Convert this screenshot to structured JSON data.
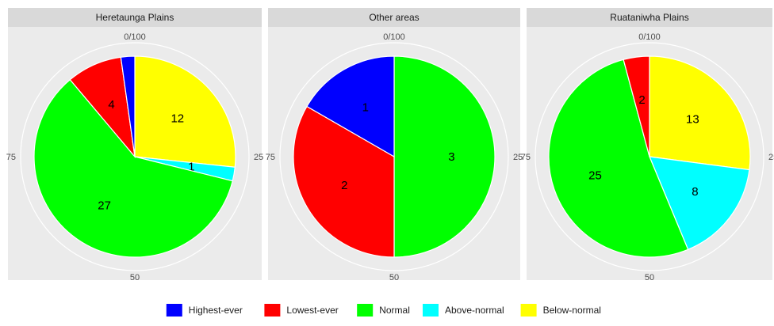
{
  "chart_data": {
    "type": "pie",
    "polar_axis_ticks": [
      "0/100",
      "25",
      "50",
      "75"
    ],
    "facets": [
      {
        "title": "Heretaunga Plains",
        "slices": [
          {
            "category": "Below-normal",
            "value": 12,
            "show_label": true
          },
          {
            "category": "Above-normal",
            "value": 1,
            "show_label": true
          },
          {
            "category": "Normal",
            "value": 27,
            "show_label": true
          },
          {
            "category": "Lowest-ever",
            "value": 4,
            "show_label": true
          },
          {
            "category": "Highest-ever",
            "value": 1,
            "show_label": false
          }
        ]
      },
      {
        "title": "Other areas",
        "slices": [
          {
            "category": "Normal",
            "value": 3,
            "show_label": true
          },
          {
            "category": "Lowest-ever",
            "value": 2,
            "show_label": true
          },
          {
            "category": "Highest-ever",
            "value": 1,
            "show_label": true
          }
        ]
      },
      {
        "title": "Ruataniwha Plains",
        "slices": [
          {
            "category": "Below-normal",
            "value": 13,
            "show_label": true
          },
          {
            "category": "Above-normal",
            "value": 8,
            "show_label": true
          },
          {
            "category": "Normal",
            "value": 25,
            "show_label": true
          },
          {
            "category": "Lowest-ever",
            "value": 2,
            "show_label": true
          }
        ]
      }
    ],
    "legend": {
      "position": "bottom",
      "entries": [
        {
          "label": "Highest-ever",
          "color": "#0000ff"
        },
        {
          "label": "Lowest-ever",
          "color": "#ff0000"
        },
        {
          "label": "Normal",
          "color": "#00ff00"
        },
        {
          "label": "Above-normal",
          "color": "#00ffff"
        },
        {
          "label": "Below-normal",
          "color": "#ffff00"
        }
      ]
    },
    "panel_background": "#ebebeb",
    "strip_background": "#d9d9d9",
    "grid_color": "#ffffff"
  }
}
